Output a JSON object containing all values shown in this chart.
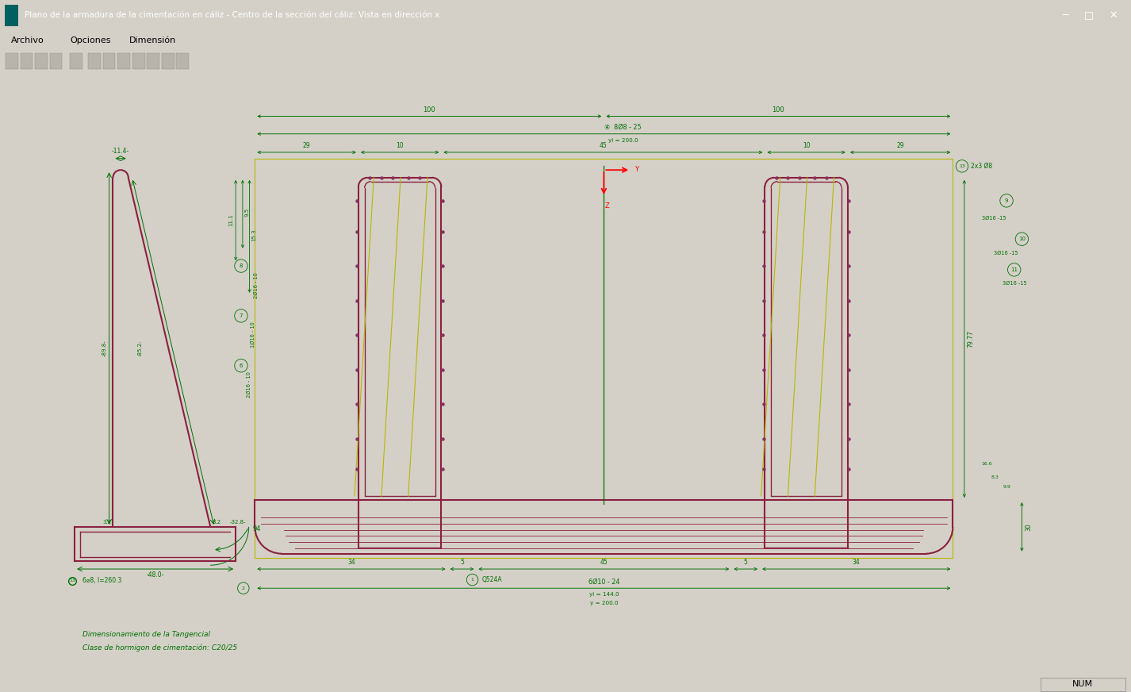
{
  "bg_color": "#d4d0c8",
  "drawing_bg": "#ffffff",
  "title_bar_color": "#008b8b",
  "title_text": "Plano de la armadura de la cimentación en cáliz - Centro de la sección del cáliz: Vista en dirección x",
  "menu_items": [
    "Archivo",
    "Opciones",
    "Dimensión"
  ],
  "dark_red": "#8b2040",
  "green": "#007000",
  "yellow_green": "#b8b800",
  "footer_text1": "Dimensionamiento de la Tangencial",
  "footer_text2": "Clase de hormigon de cimentación: C20/25",
  "num_text": "NUM",
  "toolbar_icon_color": "#c0c0c0"
}
